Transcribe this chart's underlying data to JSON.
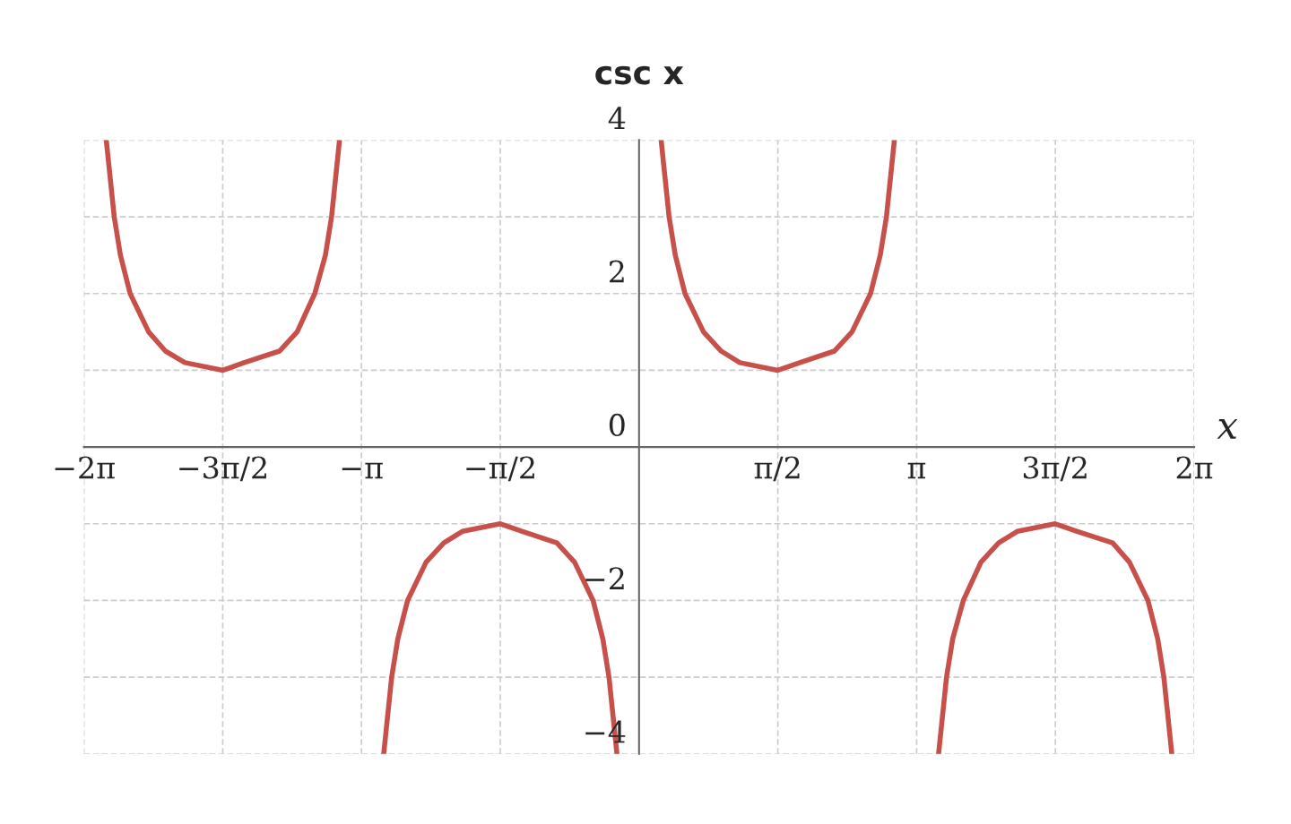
{
  "chart_data": {
    "type": "line",
    "title": "csc x",
    "xlabel": "x",
    "series": [
      {
        "color": "#c8504a",
        "x": [
          -6.03,
          -5.94,
          -5.87,
          -5.76,
          -5.55,
          -5.36,
          -5.14,
          -4.71,
          -4.47,
          -4.07,
          -3.87,
          -3.67,
          -3.55,
          -3.48,
          -3.39
        ],
        "values": [
          4,
          3,
          2.5,
          2,
          1.5,
          1.25,
          1.1,
          1,
          1.1,
          1.25,
          1.5,
          2,
          2.5,
          3,
          4
        ]
      },
      {
        "color": "#c8504a",
        "x": [
          -2.89,
          -2.8,
          -2.73,
          -2.62,
          -2.41,
          -2.21,
          -2.0,
          -1.57,
          -1.32,
          -0.93,
          -0.73,
          -0.52,
          -0.41,
          -0.34,
          -0.25
        ],
        "values": [
          -4,
          -3,
          -2.5,
          -2,
          -1.5,
          -1.25,
          -1.1,
          -1,
          -1.1,
          -1.25,
          -1.5,
          -2,
          -2.5,
          -3,
          -4
        ]
      },
      {
        "color": "#c8504a",
        "x": [
          0.25,
          0.34,
          0.41,
          0.52,
          0.73,
          0.93,
          1.14,
          1.57,
          1.82,
          2.21,
          2.41,
          2.62,
          2.73,
          2.8,
          2.89
        ],
        "values": [
          4,
          3,
          2.5,
          2,
          1.5,
          1.25,
          1.1,
          1,
          1.1,
          1.25,
          1.5,
          2,
          2.5,
          3,
          4
        ]
      },
      {
        "color": "#c8504a",
        "x": [
          3.39,
          3.48,
          3.55,
          3.67,
          3.87,
          4.07,
          4.28,
          4.71,
          4.96,
          5.36,
          5.55,
          5.76,
          5.87,
          5.94,
          6.03
        ],
        "values": [
          -4,
          -3,
          -2.5,
          -2,
          -1.5,
          -1.25,
          -1.1,
          -1,
          -1.1,
          -1.25,
          -1.5,
          -2,
          -2.5,
          -3,
          -4
        ]
      }
    ],
    "xlim": [
      -6.283,
      6.283
    ],
    "xticks": [
      {
        "value": -6.283,
        "label": "−2π"
      },
      {
        "value": -4.712,
        "label": "−3π/2"
      },
      {
        "value": -3.142,
        "label": "−π"
      },
      {
        "value": -1.571,
        "label": "−π/2"
      },
      {
        "value": 1.571,
        "label": "π/2"
      },
      {
        "value": 3.142,
        "label": "π"
      },
      {
        "value": 4.712,
        "label": "3π/2"
      },
      {
        "value": 6.283,
        "label": "2π"
      }
    ],
    "ylim": [
      -4,
      4
    ],
    "yticks": [
      {
        "value": -4,
        "label": "−4"
      },
      {
        "value": -3,
        "label": null
      },
      {
        "value": -2,
        "label": "−2"
      },
      {
        "value": -1,
        "label": null
      },
      0,
      {
        "value": 1,
        "label": null
      },
      2,
      {
        "value": 3,
        "label": null
      },
      4
    ],
    "grid": true,
    "marker": "none",
    "line_style": "solid",
    "legend": false
  }
}
